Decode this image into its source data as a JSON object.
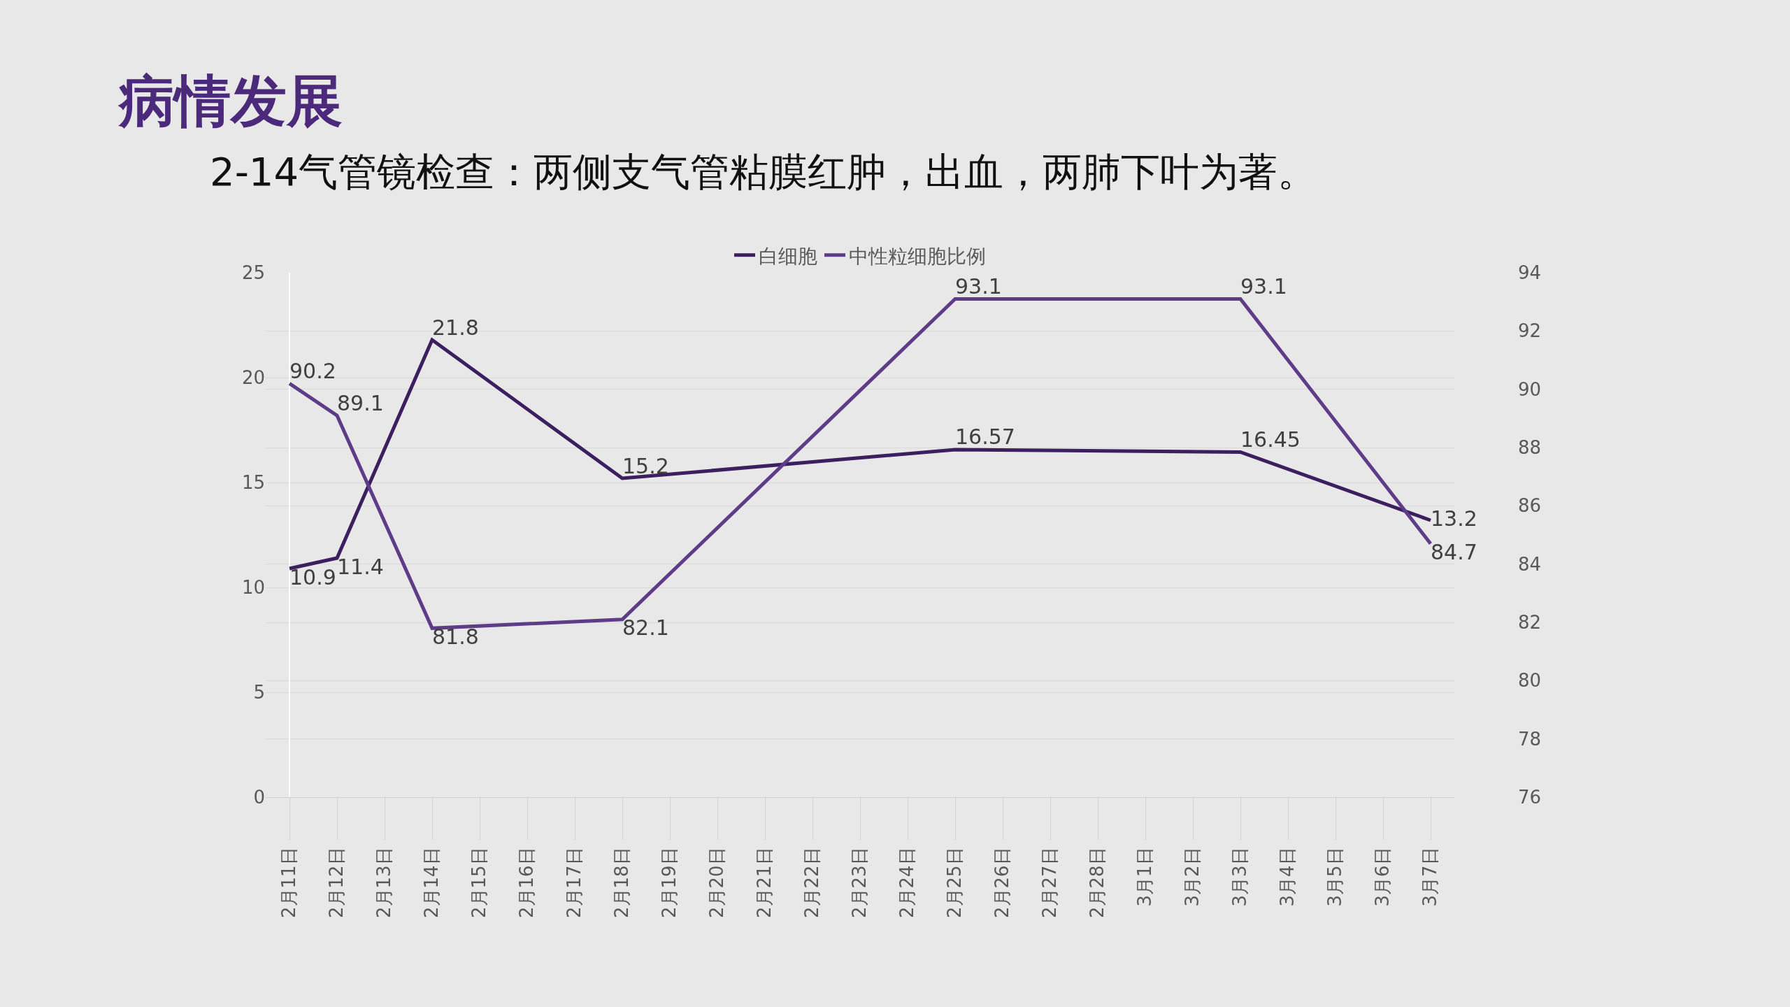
{
  "chart_data": {
    "type": "line",
    "title": "病情发展",
    "subtitle": "2-14气管镜检查：两侧支气管粘膜红肿，出血，两肺下叶为著。",
    "categories": [
      "2月11日",
      "2月12日",
      "2月13日",
      "2月14日",
      "2月15日",
      "2月16日",
      "2月17日",
      "2月18日",
      "2月19日",
      "2月20日",
      "2月21日",
      "2月22日",
      "2月23日",
      "2月24日",
      "2月25日",
      "2月26日",
      "2月27日",
      "2月28日",
      "3月1日",
      "3月2日",
      "3月3日",
      "3月4日",
      "3月5日",
      "3月6日",
      "3月7日"
    ],
    "series": [
      {
        "name": "白细胞",
        "color": "#3b1f5e",
        "values": [
          10.9,
          11.4,
          null,
          21.8,
          null,
          null,
          null,
          15.2,
          null,
          null,
          null,
          null,
          null,
          null,
          16.57,
          null,
          null,
          null,
          null,
          null,
          16.45,
          null,
          null,
          null,
          13.2
        ]
      },
      {
        "name": "中性粒细胞比例",
        "color": "#5e3c88",
        "axis": "y2",
        "values": [
          90.2,
          89.1,
          null,
          81.8,
          null,
          null,
          null,
          82.1,
          null,
          null,
          null,
          null,
          null,
          null,
          93.1,
          null,
          null,
          null,
          null,
          null,
          93.1,
          null,
          null,
          null,
          84.7
        ]
      }
    ],
    "ylim": [
      0,
      25
    ],
    "yticks": [
      0,
      5,
      10,
      15,
      20,
      25
    ],
    "y2lim": [
      76,
      94
    ],
    "y2ticks": [
      76,
      78,
      80,
      82,
      84,
      86,
      88,
      90,
      92,
      94
    ],
    "grid": "y",
    "legend": "top",
    "data_labels": true,
    "marker": "none",
    "line_style": "solid"
  }
}
